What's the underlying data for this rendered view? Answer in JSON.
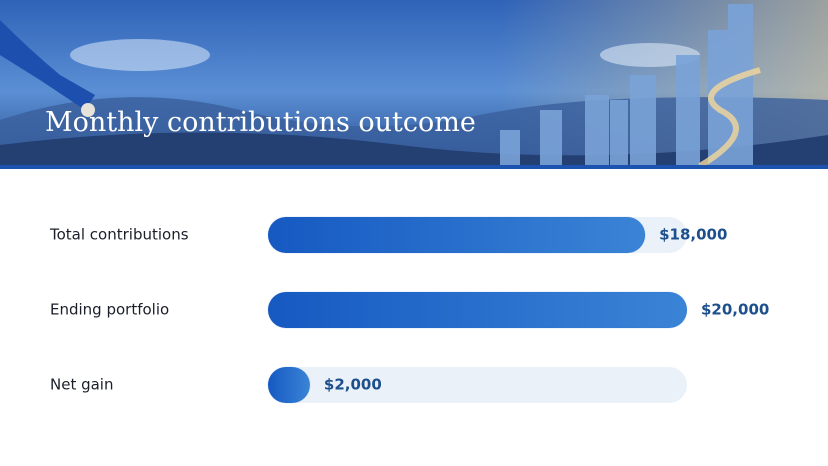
{
  "chart_data": {
    "type": "bar",
    "title": "Monthly contributions outcome",
    "categories": [
      "Total contributions",
      "Ending portfolio",
      "Net gain"
    ],
    "values": [
      18000,
      20000,
      2000
    ],
    "value_labels": [
      "$18,000",
      "$20,000",
      "$2,000"
    ],
    "xlim": [
      0,
      20000
    ],
    "color": "#1f63c6"
  }
}
